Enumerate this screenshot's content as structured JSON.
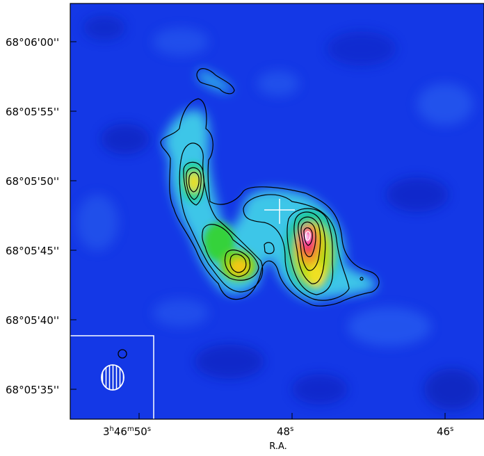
{
  "chart_data": {
    "type": "heatmap",
    "subtype": "radio-continuum-contour-map",
    "xlabel": "R.A.",
    "ylabel": "",
    "colormap": "rainbow (blue background to magenta peak)",
    "x_ticks": [
      {
        "value_s": 50,
        "label": {
          "h": "3",
          "hs": "h",
          "m": "46",
          "ms": "m",
          "s": "50",
          "ss": "s"
        }
      },
      {
        "value_s": 48,
        "label": {
          "h": "",
          "hs": "",
          "m": "",
          "ms": "",
          "s": "48",
          "ss": "s"
        }
      },
      {
        "value_s": 46,
        "label": {
          "h": "",
          "hs": "",
          "m": "",
          "ms": "",
          "s": "46",
          "ss": "s"
        }
      }
    ],
    "y_ticks": [
      {
        "value": "68:06:00",
        "label": "68°06'00''"
      },
      {
        "value": "68:05:55",
        "label": "68°05'55''"
      },
      {
        "value": "68:05:50",
        "label": "68°05'50''"
      },
      {
        "value": "68:05:45",
        "label": "68°05'45''"
      },
      {
        "value": "68:05:40",
        "label": "68°05'40''"
      },
      {
        "value": "68:05:35",
        "label": "68°05'35''"
      }
    ],
    "xlim_ra_seconds": [
      50.95,
      45.6
    ],
    "ylim": [
      "68:05:32.9",
      "68:06:02.8"
    ],
    "marker": {
      "type": "cross",
      "color": "#ffffff",
      "ra_s": 47.95,
      "dec": "68:05:48"
    },
    "beam_inset": {
      "position": "bottom-left",
      "shape": "hatched ellipse",
      "color": "#ffffff"
    },
    "colors": {
      "background": "#1438e6",
      "contour": "#000000",
      "frame": "#000000",
      "inset": "#ffffff",
      "peak": "#ff40c0"
    }
  }
}
